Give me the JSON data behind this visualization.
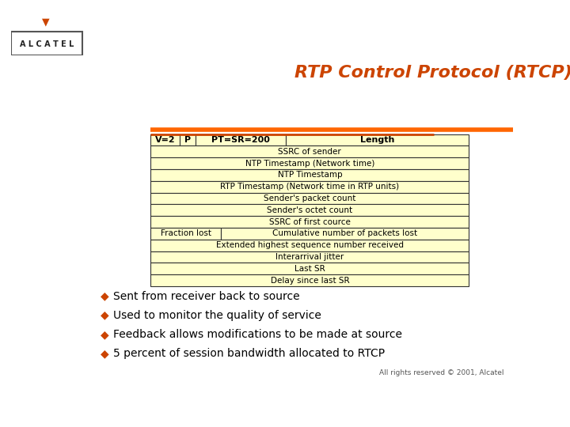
{
  "title": "RTP Control Protocol (RTCP)",
  "title_color": "#CC4400",
  "background_color": "#FFFFFF",
  "table_bg": "#FFFFCC",
  "table_border": "#333333",
  "full_rows": [
    "SSRC of sender",
    "NTP Timestamp (Network time)",
    "NTP Timestamp",
    "RTP Timestamp (Network time in RTP units)",
    "Sender's packet count",
    "Sender's octet count",
    "SSRC of first cource"
  ],
  "split_row_left": "Fraction lost",
  "split_row_right": "Cumulative number of packets lost",
  "bottom_rows": [
    "Extended highest sequence number received",
    "Interarrival jitter",
    "Last SR",
    "Delay since last SR"
  ],
  "bullets": [
    "Sent from receiver back to source",
    "Used to monitor the quality of service",
    "Feedback allows modifications to be made at source",
    "5 percent of session bandwidth allocated to RTCP"
  ],
  "bullet_color": "#CC4400",
  "footer": "All rights reserved © 2001, Alcatel",
  "orange_line_color1": "#FF6600",
  "orange_line_color2": "#CC4400"
}
